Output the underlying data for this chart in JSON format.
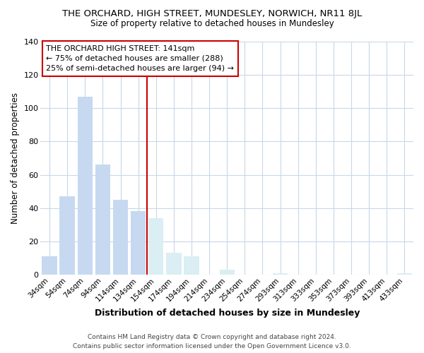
{
  "title": "THE ORCHARD, HIGH STREET, MUNDESLEY, NORWICH, NR11 8JL",
  "subtitle": "Size of property relative to detached houses in Mundesley",
  "xlabel": "Distribution of detached houses by size in Mundesley",
  "ylabel": "Number of detached properties",
  "bar_labels": [
    "34sqm",
    "54sqm",
    "74sqm",
    "94sqm",
    "114sqm",
    "134sqm",
    "154sqm",
    "174sqm",
    "194sqm",
    "214sqm",
    "234sqm",
    "254sqm",
    "274sqm",
    "293sqm",
    "313sqm",
    "333sqm",
    "353sqm",
    "373sqm",
    "393sqm",
    "413sqm",
    "433sqm"
  ],
  "bar_values": [
    11,
    47,
    107,
    66,
    45,
    38,
    34,
    13,
    11,
    0,
    3,
    0,
    0,
    1,
    0,
    0,
    0,
    0,
    0,
    0,
    1
  ],
  "bar_color_left": "#c6d9f0",
  "bar_color_right": "#daeef3",
  "split_index": 6,
  "vline_color": "#cc0000",
  "ylim": [
    0,
    140
  ],
  "yticks": [
    0,
    20,
    40,
    60,
    80,
    100,
    120,
    140
  ],
  "annotation_title": "THE ORCHARD HIGH STREET: 141sqm",
  "annotation_line1": "← 75% of detached houses are smaller (288)",
  "annotation_line2": "25% of semi-detached houses are larger (94) →",
  "annotation_box_color": "#ffffff",
  "annotation_box_edge": "#cc0000",
  "footer1": "Contains HM Land Registry data © Crown copyright and database right 2024.",
  "footer2": "Contains public sector information licensed under the Open Government Licence v3.0.",
  "background_color": "#ffffff",
  "grid_color": "#c8d8e8"
}
